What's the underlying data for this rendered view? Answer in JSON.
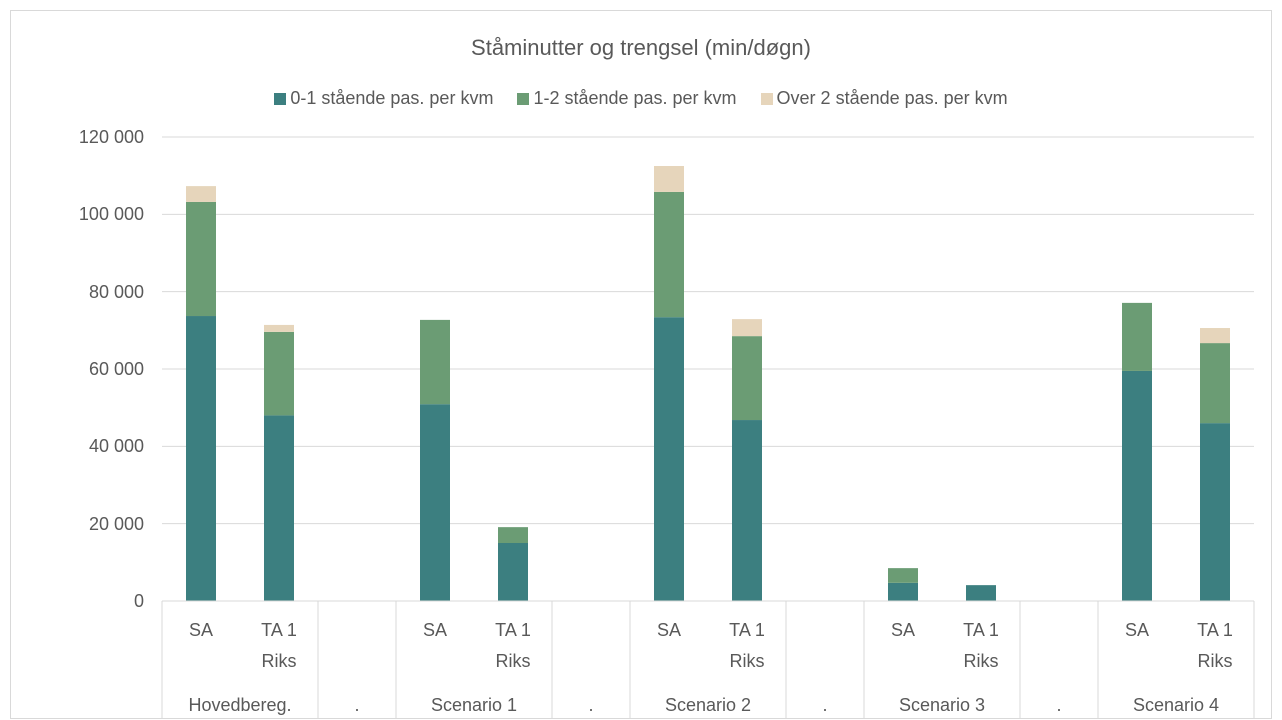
{
  "chart_data": {
    "type": "bar",
    "stacked": true,
    "title": "Ståminutter og trengsel (min/døgn)",
    "category_groups": [
      {
        "name": "Hovedbereg.",
        "categories": [
          "SA",
          "TA 1 Riks"
        ]
      },
      {
        "name": ".",
        "categories": [
          null
        ]
      },
      {
        "name": "Scenario 1",
        "categories": [
          "SA",
          "TA 1 Riks"
        ]
      },
      {
        "name": ".",
        "categories": [
          null
        ]
      },
      {
        "name": "Scenario 2",
        "categories": [
          "SA",
          "TA 1 Riks"
        ]
      },
      {
        "name": ".",
        "categories": [
          null
        ]
      },
      {
        "name": "Scenario 3",
        "categories": [
          "SA",
          "TA 1 Riks"
        ]
      },
      {
        "name": ".",
        "categories": [
          null
        ]
      },
      {
        "name": "Scenario 4",
        "categories": [
          "SA",
          "TA 1 Riks"
        ]
      }
    ],
    "series": [
      {
        "name": "0-1 stående pas. per kvm",
        "color": "#3c7f80",
        "values": [
          73700,
          48000,
          null,
          50900,
          15000,
          null,
          73400,
          46800,
          null,
          4700,
          4100,
          null,
          59500,
          46000
        ]
      },
      {
        "name": "1-2 stående pas. per kvm",
        "color": "#6b9c74",
        "values": [
          29500,
          21600,
          null,
          21800,
          4100,
          null,
          32400,
          21700,
          null,
          3800,
          0,
          null,
          17600,
          20700
        ]
      },
      {
        "name": "Over 2 stående pas. per kvm",
        "color": "#e6d5bb",
        "values": [
          4100,
          1800,
          null,
          0,
          0,
          null,
          6700,
          4400,
          null,
          0,
          0,
          null,
          0,
          3900
        ]
      }
    ],
    "ylim": [
      0,
      120000
    ],
    "yticks": [
      0,
      {
        "value": 20000,
        "label": "20 000"
      },
      {
        "value": 40000,
        "label": "40 000"
      },
      {
        "value": 60000,
        "label": "60 000"
      },
      {
        "value": 80000,
        "label": "80 000"
      },
      {
        "value": 100000,
        "label": "100 000"
      },
      {
        "value": 120000,
        "label": "120 000"
      }
    ],
    "grid": true,
    "legend": "top"
  }
}
